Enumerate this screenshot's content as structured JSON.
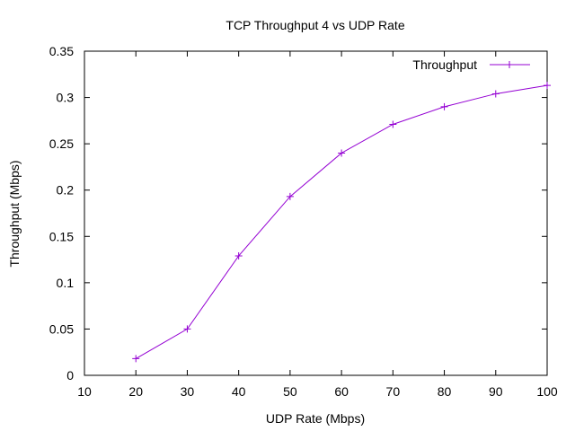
{
  "chart_data": {
    "type": "line",
    "title": "TCP Throughput 4 vs UDP Rate",
    "xlabel": "UDP Rate (Mbps)",
    "ylabel": "Throughput (Mbps)",
    "xlim": [
      10,
      100
    ],
    "ylim": [
      0,
      0.35
    ],
    "xticks": [
      10,
      20,
      30,
      40,
      50,
      60,
      70,
      80,
      90,
      100
    ],
    "xtick_labels": [
      "10",
      "20",
      "30",
      "40",
      "50",
      "60",
      "70",
      "80",
      "90",
      "100"
    ],
    "yticks": [
      0,
      0.05,
      0.1,
      0.15,
      0.2,
      0.25,
      0.3,
      0.35
    ],
    "ytick_labels": [
      "0",
      "0.05",
      "0.1",
      "0.15",
      "0.2",
      "0.25",
      "0.3",
      "0.35"
    ],
    "grid": false,
    "legend_position": "top-right",
    "series": [
      {
        "name": "Throughput",
        "color": "#9400d3",
        "marker": "plus",
        "x": [
          20,
          30,
          40,
          50,
          60,
          70,
          80,
          90,
          100
        ],
        "y": [
          0.018,
          0.05,
          0.129,
          0.193,
          0.24,
          0.271,
          0.29,
          0.304,
          0.313
        ]
      }
    ]
  }
}
